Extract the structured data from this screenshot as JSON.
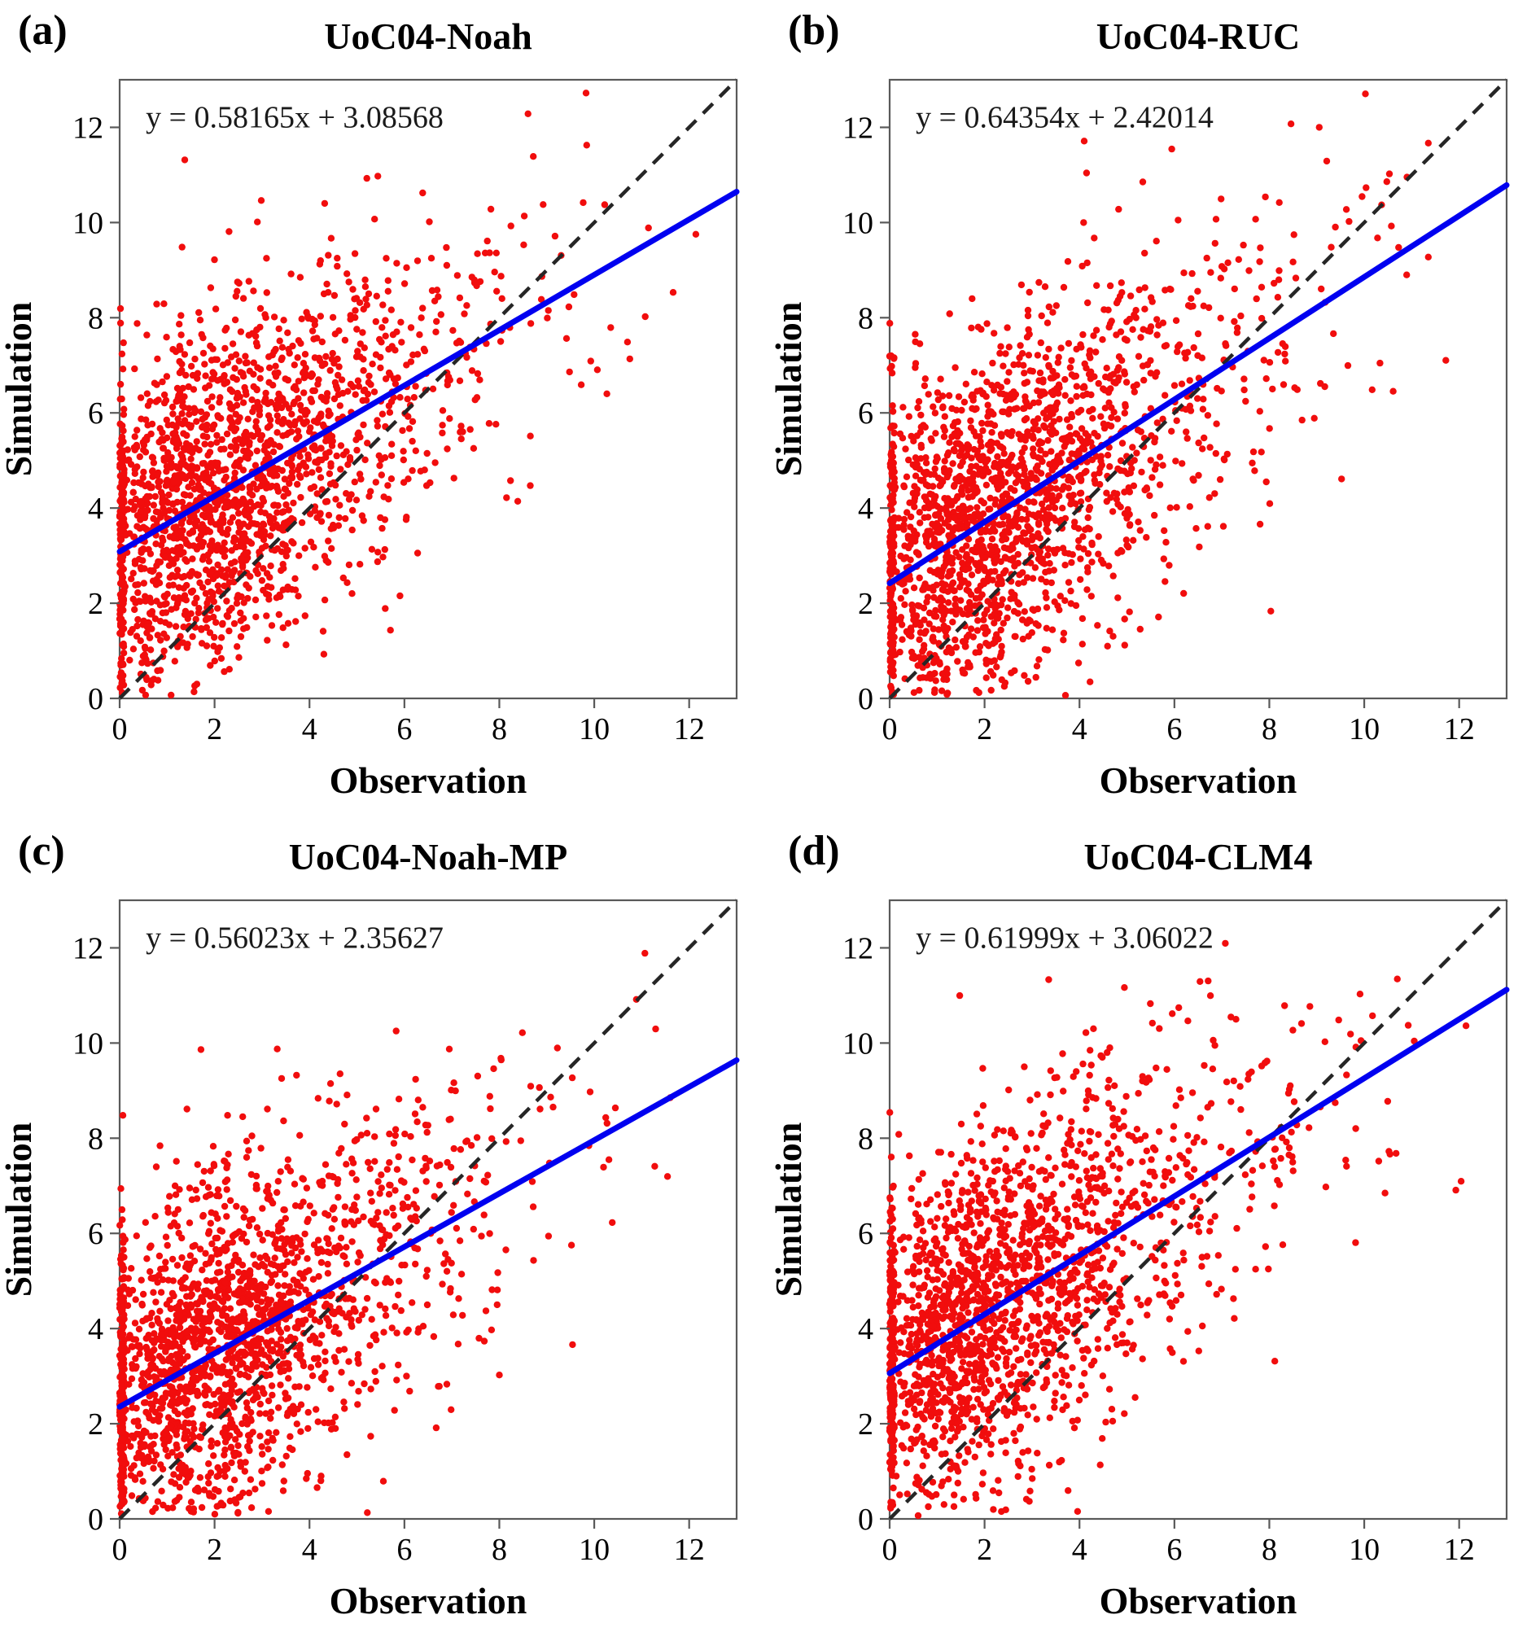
{
  "style": {
    "point_color": "#f10d0d",
    "fit_color": "#0000f0",
    "identity_color": "#262626",
    "frame_color": "#595959",
    "text_color": "#000000"
  },
  "chart_data": [
    {
      "type": "scatter",
      "panel_label": "(a)",
      "title": "UoC04-Noah",
      "equation": "y =  0.58165x +  3.08568",
      "fit": {
        "slope": 0.58165,
        "intercept": 3.08568
      },
      "xlabel": "Observation",
      "ylabel": "Simulation",
      "xlim": [
        0,
        13
      ],
      "ylim": [
        0,
        13
      ],
      "xticks": [
        0,
        2,
        4,
        6,
        8,
        10,
        12
      ],
      "yticks": [
        0,
        2,
        4,
        6,
        8,
        10,
        12
      ],
      "identity_line": true,
      "points": {
        "n": 1900,
        "seed": 11,
        "zero_frac": 0.1,
        "x_scale": 2.9,
        "noise_sd": 1.9
      }
    },
    {
      "type": "scatter",
      "panel_label": "(b)",
      "title": "UoC04-RUC",
      "equation": "y =  0.64354x +  2.42014",
      "fit": {
        "slope": 0.64354,
        "intercept": 2.42014
      },
      "xlabel": "Observation",
      "ylabel": "Simulation",
      "xlim": [
        0,
        13
      ],
      "ylim": [
        0,
        13
      ],
      "xticks": [
        0,
        2,
        4,
        6,
        8,
        10,
        12
      ],
      "yticks": [
        0,
        2,
        4,
        6,
        8,
        10,
        12
      ],
      "identity_line": true,
      "points": {
        "n": 1900,
        "seed": 22,
        "zero_frac": 0.1,
        "x_scale": 3.0,
        "noise_sd": 1.9
      }
    },
    {
      "type": "scatter",
      "panel_label": "(c)",
      "title": "UoC04-Noah-MP",
      "equation": "y =  0.56023x +  2.35627",
      "fit": {
        "slope": 0.56023,
        "intercept": 2.35627
      },
      "xlabel": "Observation",
      "ylabel": "Simulation",
      "xlim": [
        0,
        13
      ],
      "ylim": [
        0,
        13
      ],
      "xticks": [
        0,
        2,
        4,
        6,
        8,
        10,
        12
      ],
      "yticks": [
        0,
        2,
        4,
        6,
        8,
        10,
        12
      ],
      "identity_line": true,
      "points": {
        "n": 1900,
        "seed": 33,
        "zero_frac": 0.11,
        "x_scale": 2.9,
        "noise_sd": 1.9
      }
    },
    {
      "type": "scatter",
      "panel_label": "(d)",
      "title": "UoC04-CLM4",
      "equation": "y =  0.61999x +  3.06022",
      "fit": {
        "slope": 0.61999,
        "intercept": 3.06022
      },
      "xlabel": "Observation",
      "ylabel": "Simulation",
      "xlim": [
        0,
        13
      ],
      "ylim": [
        0,
        13
      ],
      "xticks": [
        0,
        2,
        4,
        6,
        8,
        10,
        12
      ],
      "yticks": [
        0,
        2,
        4,
        6,
        8,
        10,
        12
      ],
      "identity_line": true,
      "points": {
        "n": 1900,
        "seed": 44,
        "zero_frac": 0.1,
        "x_scale": 3.0,
        "noise_sd": 1.9
      }
    }
  ]
}
